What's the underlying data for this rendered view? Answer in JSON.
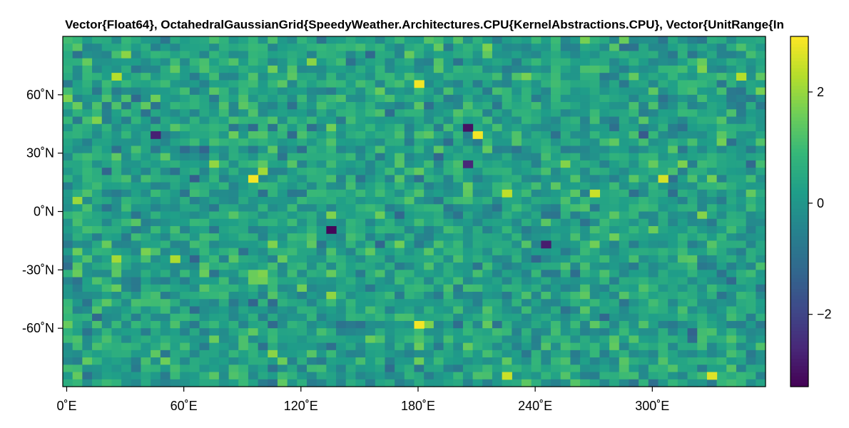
{
  "chart_data": {
    "type": "heatmap",
    "title": "Vector{Float64}, OctahedralGaussianGrid{SpeedyWeather.Architectures.CPU{KernelAbstractions.CPU}, Vector{UnitRange{In",
    "xlabel": "",
    "ylabel": "",
    "x_ticks": [
      {
        "value": 0,
        "label": "0˚E"
      },
      {
        "value": 60,
        "label": "60˚E"
      },
      {
        "value": 120,
        "label": "120˚E"
      },
      {
        "value": 180,
        "label": "180˚E"
      },
      {
        "value": 240,
        "label": "240˚E"
      },
      {
        "value": 300,
        "label": "300˚E"
      }
    ],
    "y_ticks": [
      {
        "value": 60,
        "label": "60˚N"
      },
      {
        "value": 30,
        "label": "30˚N"
      },
      {
        "value": 0,
        "label": "0˚N"
      },
      {
        "value": -30,
        "label": "-30˚N"
      },
      {
        "value": -60,
        "label": "-60˚N"
      }
    ],
    "xlim": [
      -2,
      358
    ],
    "ylim": [
      -90,
      90
    ],
    "grid_cols": 72,
    "grid_rows": 48,
    "colorbar": {
      "colormap": "viridis",
      "range": [
        -3.3,
        3.0
      ],
      "ticks": [
        {
          "value": 2,
          "label": "2"
        },
        {
          "value": 0,
          "label": "0"
        },
        {
          "value": -2,
          "label": "−2"
        }
      ]
    },
    "highlights": [
      {
        "lon": 180,
        "lat": 65,
        "value": 2.9
      },
      {
        "lon": 209,
        "lat": 39,
        "value": 2.9
      },
      {
        "lon": 206,
        "lat": 43,
        "value": -3.0
      },
      {
        "lon": 97,
        "lat": 17,
        "value": 2.9
      },
      {
        "lon": 135,
        "lat": -9,
        "value": -3.2
      },
      {
        "lon": 180,
        "lat": -57,
        "value": 2.9
      },
      {
        "lon": 204,
        "lat": 23,
        "value": -2.6
      },
      {
        "lon": 225,
        "lat": 9,
        "value": 2.4
      },
      {
        "lon": 268,
        "lat": 9,
        "value": 2.5
      },
      {
        "lon": 303,
        "lat": 17,
        "value": 2.6
      },
      {
        "lon": 56,
        "lat": -26,
        "value": 2.2
      },
      {
        "lon": 246,
        "lat": -17,
        "value": -2.8
      },
      {
        "lon": 225,
        "lat": -83,
        "value": 2.5
      },
      {
        "lon": 330,
        "lat": -83,
        "value": 2.7
      },
      {
        "lon": 28,
        "lat": 69,
        "value": 2.3
      },
      {
        "lon": 45,
        "lat": 39,
        "value": -2.7
      },
      {
        "lon": 344,
        "lat": 69,
        "value": 2.3
      }
    ]
  }
}
